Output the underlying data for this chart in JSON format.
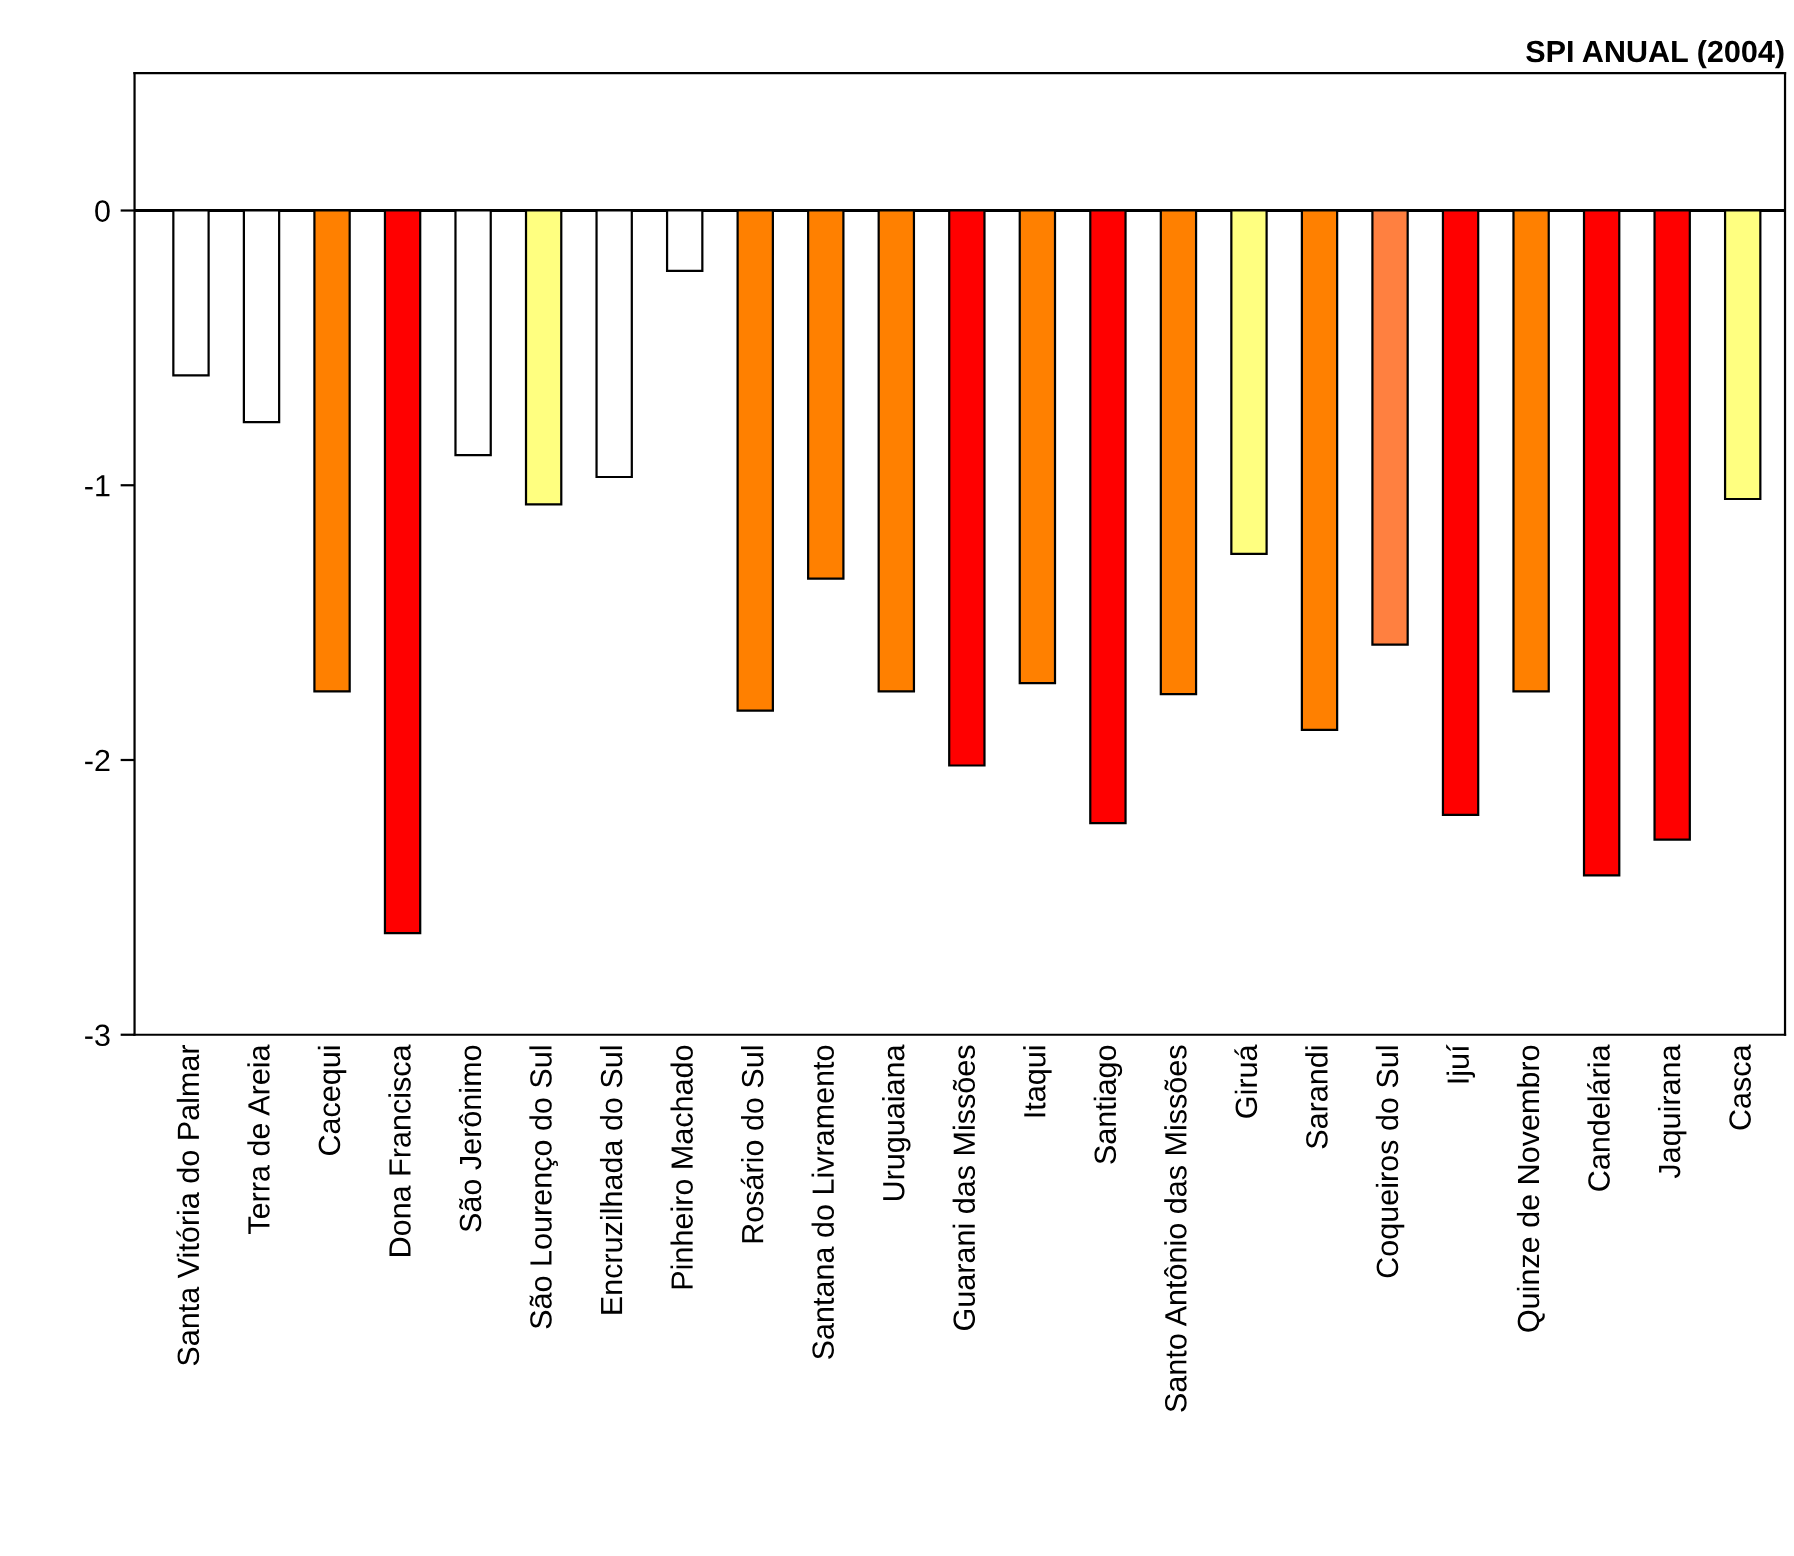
{
  "chart_data": {
    "type": "bar",
    "title": "SPI ANUAL (2004)",
    "categories": [
      "Santa Vitória do Palmar",
      "Terra de Areia",
      "Cacequi",
      "Dona Francisca",
      "São Jerônimo",
      "São Lourenço do Sul",
      "Encruzilhada do Sul",
      "Pinheiro Machado",
      "Rosário do Sul",
      "Santana do Livramento",
      "Uruguaiana",
      "Guarani das Missões",
      "Itaqui",
      "Santiago",
      "Santo Antônio das Missões",
      "Giruá",
      "Sarandi",
      "Coqueiros do Sul",
      "Ijuí",
      "Quinze de Novembro",
      "Candelária",
      "Jaquirana",
      "Casca"
    ],
    "values": [
      -0.6,
      -0.77,
      -1.75,
      -2.63,
      -0.89,
      -1.07,
      -0.97,
      -0.22,
      -1.82,
      -1.34,
      -1.75,
      -2.02,
      -1.72,
      -2.23,
      -1.76,
      -1.25,
      -1.89,
      -1.58,
      -2.2,
      -1.75,
      -2.42,
      -2.29,
      -1.05
    ],
    "colors": [
      "#ffffff",
      "#ffffff",
      "#ff8000",
      "#ff0000",
      "#ffffff",
      "#ffff80",
      "#ffffff",
      "#ffffff",
      "#ff8000",
      "#ff8000",
      "#ff8000",
      "#ff0000",
      "#ff8000",
      "#ff0000",
      "#ff8000",
      "#ffff80",
      "#ff8000",
      "#ff8040",
      "#ff0000",
      "#ff8000",
      "#ff0000",
      "#ff0000",
      "#ffff80"
    ],
    "ylim": [
      -3,
      0.5
    ],
    "yticks": [
      0,
      -1,
      -2,
      -3
    ],
    "ref_lines": [
      {
        "axis": "y",
        "value": 0,
        "color": "#000000"
      }
    ],
    "grid": false,
    "legend": false
  }
}
